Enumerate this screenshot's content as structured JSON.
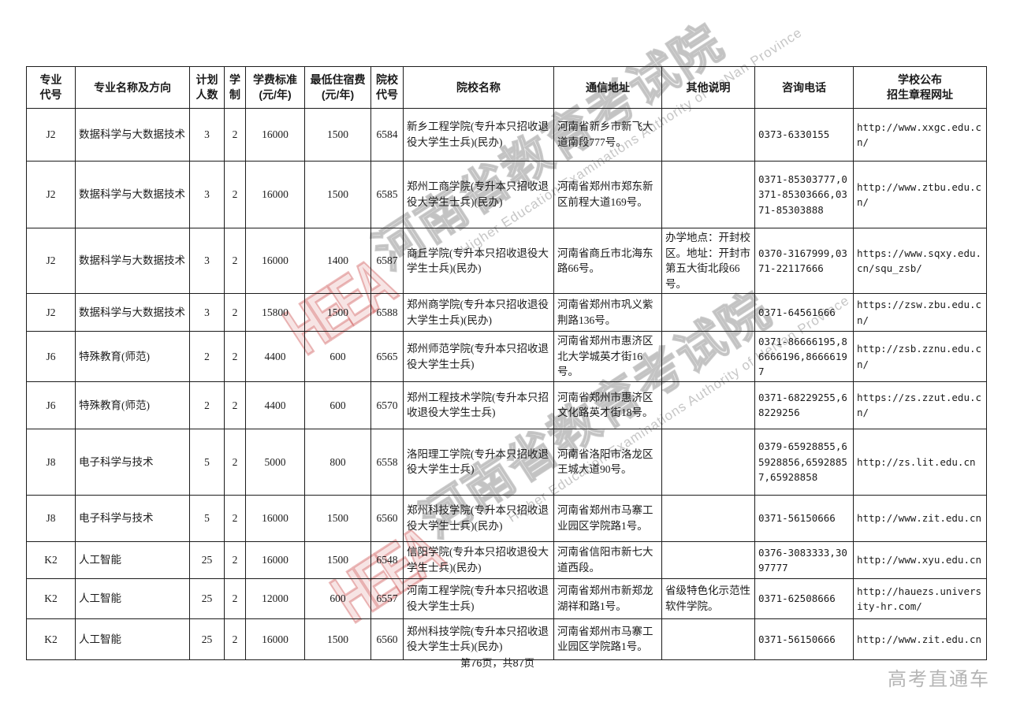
{
  "watermark": {
    "logo_text": "HEEA",
    "big_text": "河南省教育考试院",
    "english_text": "Higher Education Examinations Authority of HeNan Province",
    "gray_color": "#808080",
    "red_color": "#d05a5a"
  },
  "table": {
    "headers": [
      "专业\n代号",
      "专业名称及方向",
      "计划\n人数",
      "学\n制",
      "学费标准\n(元/年)",
      "最低住宿费\n(元/年)",
      "院校\n代号",
      "院校名称",
      "通信地址",
      "其他说明",
      "咨询电话",
      "学校公布\n招生章程网址"
    ],
    "rows": [
      [
        "J2",
        "数据科学与大数据技术",
        "3",
        "2",
        "16000",
        "1500",
        "6584",
        "新乡工程学院(专升本只招收退役大学生士兵)(民办)",
        "河南省新乡市新飞大道南段777号。",
        "",
        "0373-6330155",
        "http://www.xxgc.edu.cn/"
      ],
      [
        "J2",
        "数据科学与大数据技术",
        "3",
        "2",
        "16000",
        "1500",
        "6585",
        "郑州工商学院(专升本只招收退役大学生士兵)(民办)",
        "河南省郑州市郑东新区前程大道169号。",
        "",
        "0371-85303777,0371-85303666,0371-85303888",
        "http://www.ztbu.edu.cn/"
      ],
      [
        "J2",
        "数据科学与大数据技术",
        "3",
        "2",
        "16000",
        "1400",
        "6587",
        "商丘学院(专升本只招收退役大学生士兵)(民办)",
        "河南省商丘市北海东路66号。",
        "办学地点：开封校区。地址：开封市第五大街北段66号。",
        "0370-3167999,0371-22117666",
        "https://www.sqxy.edu.cn/squ_zsb/"
      ],
      [
        "J2",
        "数据科学与大数据技术",
        "3",
        "2",
        "15800",
        "1500",
        "6588",
        "郑州商学院(专升本只招收退役大学生士兵)(民办)",
        "河南省郑州市巩义紫荆路136号。",
        "",
        "0371-64561666",
        "https://zsw.zbu.edu.cn/"
      ],
      [
        "J6",
        "特殊教育(师范)",
        "2",
        "2",
        "4400",
        "600",
        "6565",
        "郑州师范学院(专升本只招收退役大学生士兵)",
        "河南省郑州市惠济区北大学城英才街16号。",
        "",
        "0371-86666195,86666196,86666197",
        "http://zsb.zznu.edu.cn/"
      ],
      [
        "J6",
        "特殊教育(师范)",
        "2",
        "2",
        "4400",
        "600",
        "6570",
        "郑州工程技术学院(专升本只招收退役大学生士兵)",
        "河南省郑州市惠济区文化路英才街18号。",
        "",
        "0371-68229255,68229256",
        "https://zs.zzut.edu.cn/"
      ],
      [
        "J8",
        "电子科学与技术",
        "5",
        "2",
        "5000",
        "800",
        "6558",
        "洛阳理工学院(专升本只招收退役大学生士兵)",
        "河南省洛阳市洛龙区王城大道90号。",
        "",
        "0379-65928855,65928856,65928857,65928858",
        "http://zs.lit.edu.cn"
      ],
      [
        "J8",
        "电子科学与技术",
        "5",
        "2",
        "16000",
        "1500",
        "6560",
        "郑州科技学院(专升本只招收退役大学生士兵)(民办)",
        "河南省郑州市马寨工业园区学院路1号。",
        "",
        "0371-56150666",
        "http://www.zit.edu.cn"
      ],
      [
        "K2",
        "人工智能",
        "25",
        "2",
        "16000",
        "1500",
        "6548",
        "信阳学院(专升本只招收退役大学生士兵)(民办)",
        "河南省信阳市新七大道西段。",
        "",
        "0376-3083333,3097777",
        "http://www.xyu.edu.cn"
      ],
      [
        "K2",
        "人工智能",
        "25",
        "2",
        "12000",
        "600",
        "6557",
        "河南工程学院(专升本只招收退役大学生士兵)",
        "河南省郑州市新郑龙湖祥和路1号。",
        "省级特色化示范性软件学院。",
        "0371-62508666",
        "http://hauezs.university-hr.com/"
      ],
      [
        "K2",
        "人工智能",
        "25",
        "2",
        "16000",
        "1500",
        "6560",
        "郑州科技学院(专升本只招收退役大学生士兵)(民办)",
        "河南省郑州市马寨工业园区学院路1号。",
        "",
        "0371-56150666",
        "http://www.zit.edu.cn"
      ]
    ]
  },
  "footer": {
    "page_info": "第76页，共87页"
  },
  "brand": {
    "text": "高考直通车"
  }
}
